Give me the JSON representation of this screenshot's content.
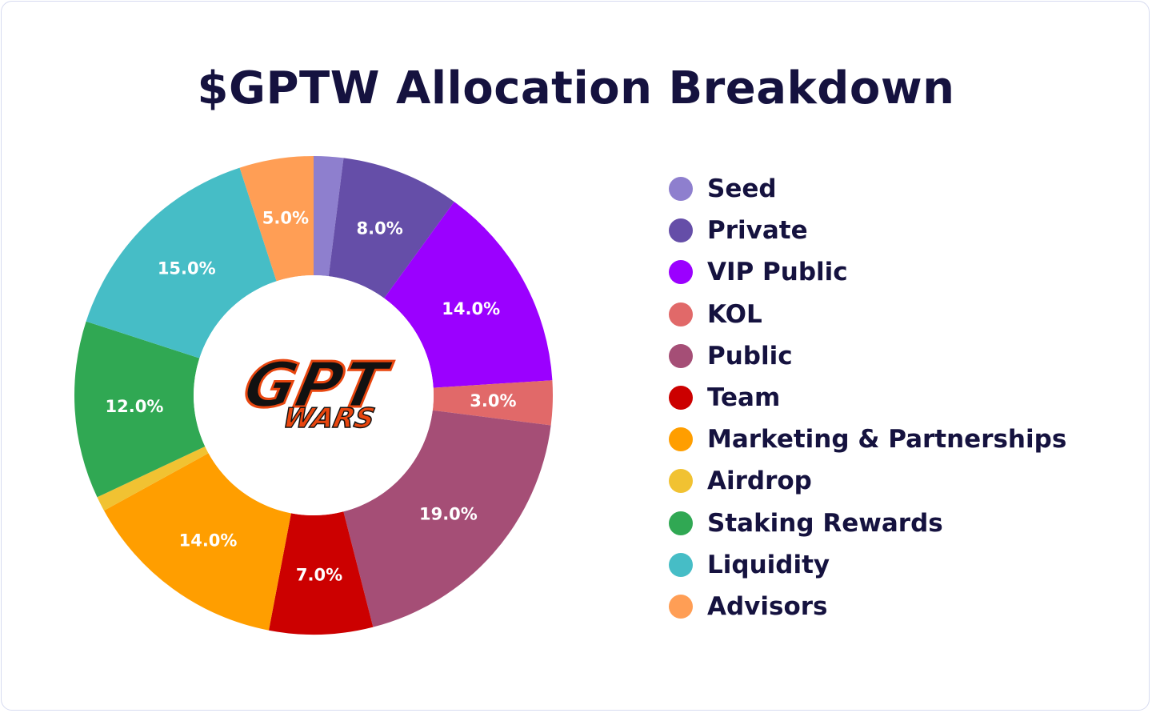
{
  "chart_data": {
    "type": "pie",
    "title": "$GPTW Allocation Breakdown",
    "donut": true,
    "legend_position": "right",
    "slices": [
      {
        "name": "Seed",
        "value": 2.0,
        "label": "",
        "color": "#8e7fce"
      },
      {
        "name": "Private",
        "value": 8.0,
        "label": "8.0%",
        "color": "#654ea8"
      },
      {
        "name": "VIP Public",
        "value": 14.0,
        "label": "14.0%",
        "color": "#9b00ff"
      },
      {
        "name": "KOL",
        "value": 3.0,
        "label": "3.0%",
        "color": "#e16969"
      },
      {
        "name": "Public",
        "value": 19.0,
        "label": "19.0%",
        "color": "#a54e76"
      },
      {
        "name": "Team",
        "value": 7.0,
        "label": "7.0%",
        "color": "#cc0000"
      },
      {
        "name": "Marketing & Partnerships",
        "value": 14.0,
        "label": "14.0%",
        "color": "#ff9e00"
      },
      {
        "name": "Airdrop",
        "value": 1.0,
        "label": "",
        "color": "#f1c232"
      },
      {
        "name": "Staking Rewards",
        "value": 12.0,
        "label": "12.0%",
        "color": "#30a853"
      },
      {
        "name": "Liquidity",
        "value": 15.0,
        "label": "15.0%",
        "color": "#46bdc6"
      },
      {
        "name": "Advisors",
        "value": 5.0,
        "label": "5.0%",
        "color": "#ff9e55"
      }
    ]
  },
  "center_logo": {
    "line1": "GPT",
    "line2": "WARS",
    "colors": {
      "fill": "#111111",
      "accent": "#e8460f"
    }
  }
}
